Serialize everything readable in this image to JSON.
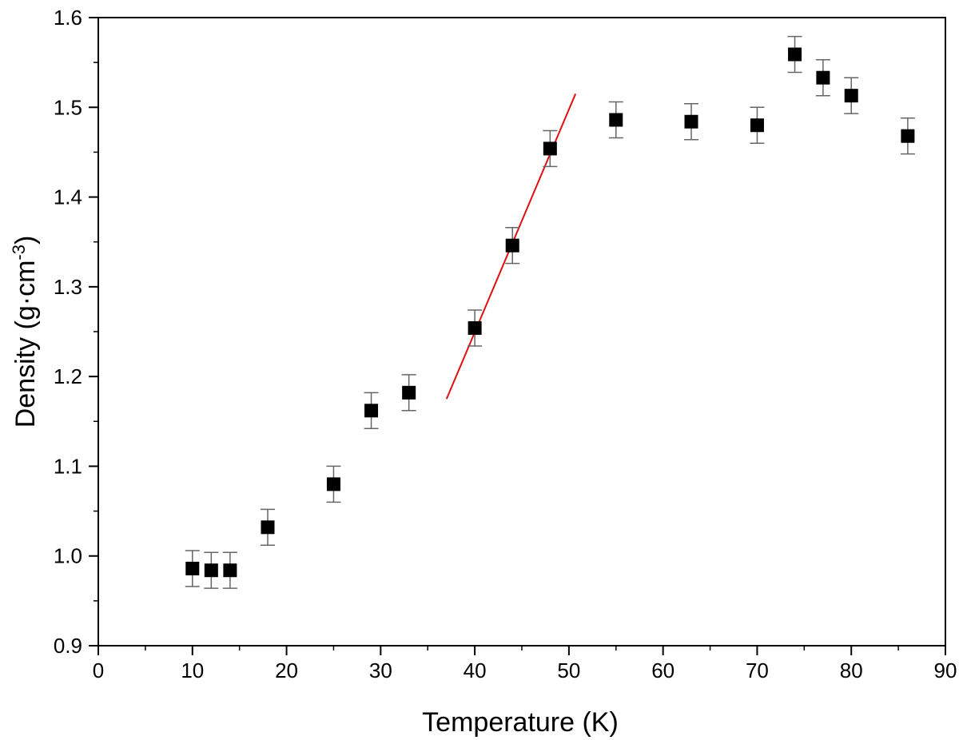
{
  "chart_data": {
    "type": "scatter",
    "title": "",
    "xlabel": "Temperature (K)",
    "ylabel": "Density (g·cm",
    "ylabel_exponent": "-3",
    "ylabel_suffix": ")",
    "xlim": [
      0,
      90
    ],
    "ylim": [
      0.9,
      1.6
    ],
    "x_ticks": [
      0,
      10,
      20,
      30,
      40,
      50,
      60,
      70,
      80,
      90
    ],
    "x_tick_labels": [
      "0",
      "10",
      "20",
      "30",
      "40",
      "50",
      "60",
      "70",
      "80",
      "90"
    ],
    "y_ticks": [
      0.9,
      1.0,
      1.1,
      1.2,
      1.3,
      1.4,
      1.5,
      1.6
    ],
    "y_tick_labels": [
      "0.9",
      "1.0",
      "1.1",
      "1.2",
      "1.3",
      "1.4",
      "1.5",
      "1.6"
    ],
    "x_minor_step": 5,
    "y_minor_step": 0.05,
    "grid": false,
    "legend": "none",
    "series": [
      {
        "marker": "square",
        "color": "#000000",
        "error_bar_color": "#666666",
        "x": [
          10,
          12,
          14,
          18,
          25,
          29,
          33,
          40,
          44,
          48,
          55,
          63,
          70,
          74,
          77,
          80,
          86
        ],
        "y": [
          0.986,
          0.984,
          0.984,
          1.032,
          1.08,
          1.162,
          1.182,
          1.254,
          1.346,
          1.454,
          1.486,
          1.484,
          1.48,
          1.559,
          1.533,
          1.513,
          1.468
        ],
        "y_error": [
          0.02,
          0.02,
          0.02,
          0.02,
          0.02,
          0.02,
          0.02,
          0.02,
          0.02,
          0.02,
          0.02,
          0.02,
          0.02,
          0.02,
          0.02,
          0.02,
          0.02
        ]
      }
    ],
    "fit_line": {
      "color": "#e01010",
      "x": [
        37,
        50.7
      ],
      "y": [
        1.175,
        1.515
      ]
    }
  }
}
